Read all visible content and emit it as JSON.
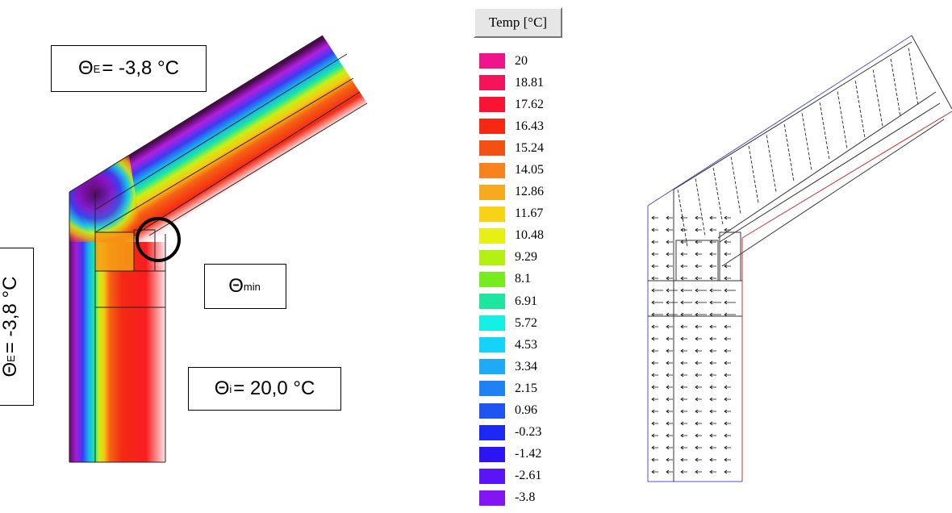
{
  "labels": {
    "theta_e_top": {
      "symbol": "Θ",
      "sub": "E",
      "text": " = -3,8 °C"
    },
    "theta_e_left": {
      "symbol": "Θ",
      "sub": "E",
      "text": " = -3,8 °C"
    },
    "theta_min": {
      "symbol": "Θ",
      "sub": "min",
      "text": ""
    },
    "theta_i": {
      "symbol": "Θ",
      "sub": "i",
      "text": " = 20,0 °C"
    }
  },
  "legend": {
    "title": "Temp [°C]",
    "items": [
      {
        "value": "20",
        "color": "#f0148c"
      },
      {
        "value": "18.81",
        "color": "#f5145a"
      },
      {
        "value": "17.62",
        "color": "#f81432"
      },
      {
        "value": "16.43",
        "color": "#f52814"
      },
      {
        "value": "15.24",
        "color": "#f55014"
      },
      {
        "value": "14.05",
        "color": "#f7821e"
      },
      {
        "value": "12.86",
        "color": "#f8aa1e"
      },
      {
        "value": "11.67",
        "color": "#f8d214"
      },
      {
        "value": "10.48",
        "color": "#e6f014"
      },
      {
        "value": "9.29",
        "color": "#b4f014"
      },
      {
        "value": "8.1",
        "color": "#78eb1e"
      },
      {
        "value": "6.91",
        "color": "#1ee6a0"
      },
      {
        "value": "5.72",
        "color": "#14f0e6"
      },
      {
        "value": "4.53",
        "color": "#14d2f8"
      },
      {
        "value": "3.34",
        "color": "#1eaaf5"
      },
      {
        "value": "2.15",
        "color": "#1e82f5"
      },
      {
        "value": "0.96",
        "color": "#1e55f0"
      },
      {
        "value": "-0.23",
        "color": "#1e28f5"
      },
      {
        "value": "-1.42",
        "color": "#2d14f5"
      },
      {
        "value": "-2.61",
        "color": "#5a14f5"
      },
      {
        "value": "-3.8",
        "color": "#8214f5"
      }
    ]
  }
}
